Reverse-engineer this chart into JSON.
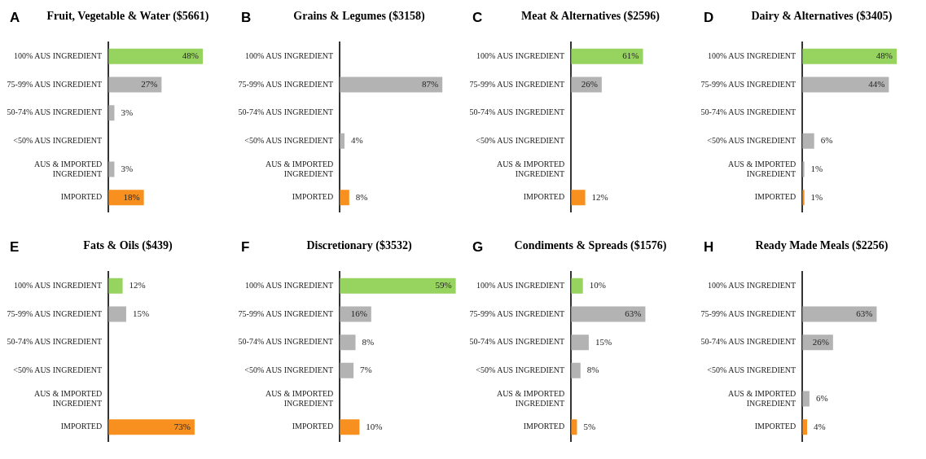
{
  "chart_data": [
    {
      "type": "bar",
      "orientation": "horizontal",
      "title": "Fruit, Vegetable & Water ($5661)",
      "annotations": [
        "A"
      ],
      "categories": [
        "100% AUS INGREDIENT",
        "75-99% AUS INGREDIENT",
        "50-74% AUS INGREDIENT",
        "<50% AUS INGREDIENT",
        "AUS & IMPORTED INGREDIENT",
        "IMPORTED"
      ],
      "tick_labels": "y",
      "grid": false,
      "legend": false,
      "series": [
        {
          "values": [
            48,
            27,
            3,
            null,
            3,
            18
          ],
          "value_labels": [
            "48%",
            "27%",
            "3%",
            null,
            "3%",
            "18%"
          ],
          "colors": [
            "#97d45f",
            "#b3b3b3",
            "#b3b3b3",
            "#b3b3b3",
            "#b3b3b3",
            "#f7901e"
          ]
        }
      ]
    },
    {
      "type": "bar",
      "orientation": "horizontal",
      "title": "Grains & Legumes ($3158)",
      "annotations": [
        "B"
      ],
      "categories": [
        "100% AUS INGREDIENT",
        "75-99% AUS INGREDIENT",
        "50-74% AUS INGREDIENT",
        "<50% AUS INGREDIENT",
        "AUS & IMPORTED INGREDIENT",
        "IMPORTED"
      ],
      "tick_labels": "y",
      "grid": false,
      "legend": false,
      "series": [
        {
          "values": [
            null,
            87,
            null,
            4,
            null,
            8
          ],
          "value_labels": [
            null,
            "87%",
            null,
            "4%",
            null,
            "8%"
          ],
          "colors": [
            "#97d45f",
            "#b3b3b3",
            "#b3b3b3",
            "#b3b3b3",
            "#b3b3b3",
            "#f7901e"
          ]
        }
      ]
    },
    {
      "type": "bar",
      "orientation": "horizontal",
      "title": "Meat & Alternatives ($2596)",
      "annotations": [
        "C"
      ],
      "categories": [
        "100% AUS INGREDIENT",
        "75-99% AUS INGREDIENT",
        "50-74% AUS INGREDIENT",
        "<50% AUS INGREDIENT",
        "AUS & IMPORTED INGREDIENT",
        "IMPORTED"
      ],
      "tick_labels": "y",
      "grid": false,
      "legend": false,
      "series": [
        {
          "values": [
            61,
            26,
            null,
            null,
            null,
            12
          ],
          "value_labels": [
            "61%",
            "26%",
            null,
            null,
            null,
            "12%"
          ],
          "colors": [
            "#97d45f",
            "#b3b3b3",
            "#b3b3b3",
            "#b3b3b3",
            "#b3b3b3",
            "#f7901e"
          ]
        }
      ]
    },
    {
      "type": "bar",
      "orientation": "horizontal",
      "title": "Dairy & Alternatives ($3405)",
      "annotations": [
        "D"
      ],
      "categories": [
        "100% AUS INGREDIENT",
        "75-99% AUS INGREDIENT",
        "50-74% AUS INGREDIENT",
        "<50% AUS INGREDIENT",
        "AUS & IMPORTED INGREDIENT",
        "IMPORTED"
      ],
      "tick_labels": "y",
      "grid": false,
      "legend": false,
      "series": [
        {
          "values": [
            48,
            44,
            null,
            6,
            1,
            1
          ],
          "value_labels": [
            "48%",
            "44%",
            null,
            "6%",
            "1%",
            "1%"
          ],
          "colors": [
            "#97d45f",
            "#b3b3b3",
            "#b3b3b3",
            "#b3b3b3",
            "#b3b3b3",
            "#f7901e"
          ]
        }
      ]
    },
    {
      "type": "bar",
      "orientation": "horizontal",
      "title": "Fats & Oils ($439)",
      "annotations": [
        "E"
      ],
      "categories": [
        "100% AUS INGREDIENT",
        "75-99% AUS INGREDIENT",
        "50-74% AUS INGREDIENT",
        "<50% AUS INGREDIENT",
        "AUS & IMPORTED INGREDIENT",
        "IMPORTED"
      ],
      "tick_labels": "y",
      "grid": false,
      "legend": false,
      "series": [
        {
          "values": [
            12,
            15,
            null,
            null,
            null,
            73
          ],
          "value_labels": [
            "12%",
            "15%",
            null,
            null,
            null,
            "73%"
          ],
          "colors": [
            "#97d45f",
            "#b3b3b3",
            "#b3b3b3",
            "#b3b3b3",
            "#b3b3b3",
            "#f7901e"
          ]
        }
      ]
    },
    {
      "type": "bar",
      "orientation": "horizontal",
      "title": "Discretionary ($3532)",
      "annotations": [
        "F"
      ],
      "categories": [
        "100% AUS INGREDIENT",
        "75-99% AUS INGREDIENT",
        "50-74% AUS INGREDIENT",
        "<50% AUS INGREDIENT",
        "AUS & IMPORTED INGREDIENT",
        "IMPORTED"
      ],
      "tick_labels": "y",
      "grid": false,
      "legend": false,
      "series": [
        {
          "values": [
            59,
            16,
            8,
            7,
            null,
            10
          ],
          "value_labels": [
            "59%",
            "16%",
            "8%",
            "7%",
            null,
            "10%"
          ],
          "colors": [
            "#97d45f",
            "#b3b3b3",
            "#b3b3b3",
            "#b3b3b3",
            "#b3b3b3",
            "#f7901e"
          ]
        }
      ]
    },
    {
      "type": "bar",
      "orientation": "horizontal",
      "title": "Condiments & Spreads ($1576)",
      "annotations": [
        "G"
      ],
      "categories": [
        "100% AUS INGREDIENT",
        "75-99% AUS INGREDIENT",
        "50-74% AUS INGREDIENT",
        "<50% AUS INGREDIENT",
        "AUS & IMPORTED INGREDIENT",
        "IMPORTED"
      ],
      "tick_labels": "y",
      "grid": false,
      "legend": false,
      "series": [
        {
          "values": [
            10,
            63,
            15,
            8,
            null,
            5
          ],
          "value_labels": [
            "10%",
            "63%",
            "15%",
            "8%",
            null,
            "5%"
          ],
          "colors": [
            "#97d45f",
            "#b3b3b3",
            "#b3b3b3",
            "#b3b3b3",
            "#b3b3b3",
            "#f7901e"
          ]
        }
      ]
    },
    {
      "type": "bar",
      "orientation": "horizontal",
      "title": "Ready Made Meals ($2256)",
      "annotations": [
        "H"
      ],
      "categories": [
        "100% AUS INGREDIENT",
        "75-99% AUS INGREDIENT",
        "50-74% AUS INGREDIENT",
        "<50% AUS INGREDIENT",
        "AUS & IMPORTED INGREDIENT",
        "IMPORTED"
      ],
      "tick_labels": "y",
      "grid": false,
      "legend": false,
      "series": [
        {
          "values": [
            null,
            63,
            26,
            null,
            6,
            4
          ],
          "value_labels": [
            null,
            "63%",
            "26%",
            null,
            "6%",
            "4%"
          ],
          "colors": [
            "#97d45f",
            "#b3b3b3",
            "#b3b3b3",
            "#b3b3b3",
            "#b3b3b3",
            "#f7901e"
          ]
        }
      ]
    }
  ]
}
